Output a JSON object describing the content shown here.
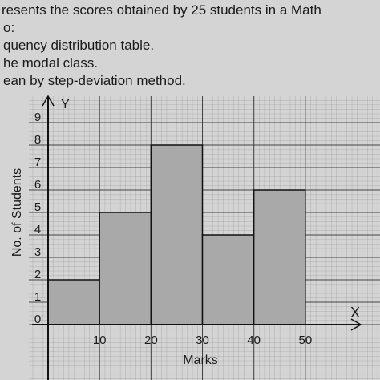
{
  "header": {
    "lines": [
      "resents the scores obtained by 25 students in a Math",
      "o:",
      "quency distribution table.",
      "he modal class.",
      "ean by step-deviation method."
    ]
  },
  "chart_data": {
    "type": "histogram",
    "x_label": "Marks",
    "y_label": "No. of Students",
    "x_axis_name": "X",
    "y_axis_name": "Y",
    "bins": [
      0,
      10,
      20,
      30,
      40,
      50
    ],
    "values": [
      2,
      5,
      8,
      4,
      6
    ],
    "color": "#a9a9a9",
    "xlim": [
      0,
      60
    ],
    "xticks": [
      10,
      20,
      30,
      40,
      50
    ],
    "ylim": [
      0,
      10
    ],
    "yticks": [
      0,
      1,
      2,
      3,
      4,
      5,
      6,
      7,
      8,
      9
    ],
    "grid": true
  }
}
